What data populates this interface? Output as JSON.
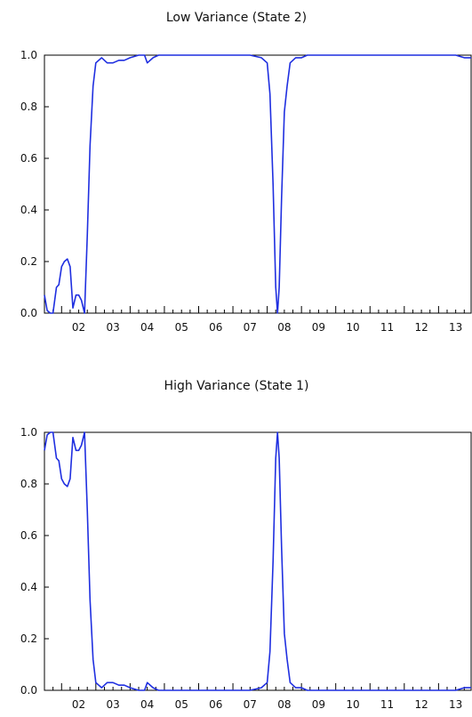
{
  "chart_data": [
    {
      "type": "line",
      "title": "Low Variance (State 2)",
      "xlabel": "",
      "ylabel": "",
      "ylim": [
        0.0,
        1.0
      ],
      "xlim": [
        2001.5,
        2013.95
      ],
      "grid": false,
      "x_tick_labels": [
        "02",
        "03",
        "04",
        "05",
        "06",
        "07",
        "08",
        "09",
        "10",
        "11",
        "12",
        "13"
      ],
      "x_tick_positions": [
        2002,
        2003,
        2004,
        2005,
        2006,
        2007,
        2008,
        2009,
        2010,
        2011,
        2012,
        2013
      ],
      "y_ticks": [
        0.0,
        0.2,
        0.4,
        0.6,
        0.8,
        1.0
      ],
      "y_tick_labels": [
        "0.0",
        "0.2",
        "0.4",
        "0.6",
        "0.8",
        "1.0"
      ],
      "series": [
        {
          "color": "#1f2fe0",
          "points": [
            [
              2001.5,
              0.07
            ],
            [
              2001.58,
              0.01
            ],
            [
              2001.67,
              0.0
            ],
            [
              2001.75,
              0.0
            ],
            [
              2001.85,
              0.1
            ],
            [
              2001.92,
              0.11
            ],
            [
              2002.0,
              0.18
            ],
            [
              2002.08,
              0.2
            ],
            [
              2002.17,
              0.21
            ],
            [
              2002.25,
              0.18
            ],
            [
              2002.33,
              0.02
            ],
            [
              2002.42,
              0.07
            ],
            [
              2002.5,
              0.07
            ],
            [
              2002.58,
              0.05
            ],
            [
              2002.67,
              0.0
            ],
            [
              2002.75,
              0.3
            ],
            [
              2002.83,
              0.65
            ],
            [
              2002.92,
              0.88
            ],
            [
              2003.0,
              0.97
            ],
            [
              2003.17,
              0.99
            ],
            [
              2003.33,
              0.97
            ],
            [
              2003.5,
              0.97
            ],
            [
              2003.67,
              0.98
            ],
            [
              2003.83,
              0.98
            ],
            [
              2004.0,
              0.99
            ],
            [
              2004.25,
              1.0
            ],
            [
              2004.42,
              1.0
            ],
            [
              2004.5,
              0.97
            ],
            [
              2004.67,
              0.99
            ],
            [
              2004.83,
              1.0
            ],
            [
              2005.0,
              1.0
            ],
            [
              2005.5,
              1.0
            ],
            [
              2006.0,
              1.0
            ],
            [
              2006.5,
              1.0
            ],
            [
              2007.0,
              1.0
            ],
            [
              2007.5,
              1.0
            ],
            [
              2007.83,
              0.99
            ],
            [
              2008.0,
              0.97
            ],
            [
              2008.08,
              0.85
            ],
            [
              2008.17,
              0.5
            ],
            [
              2008.25,
              0.1
            ],
            [
              2008.3,
              0.0
            ],
            [
              2008.35,
              0.1
            ],
            [
              2008.42,
              0.45
            ],
            [
              2008.5,
              0.78
            ],
            [
              2008.58,
              0.88
            ],
            [
              2008.67,
              0.97
            ],
            [
              2008.83,
              0.99
            ],
            [
              2009.0,
              0.99
            ],
            [
              2009.17,
              1.0
            ],
            [
              2009.5,
              1.0
            ],
            [
              2010.0,
              1.0
            ],
            [
              2011.0,
              1.0
            ],
            [
              2012.0,
              1.0
            ],
            [
              2013.0,
              1.0
            ],
            [
              2013.5,
              1.0
            ],
            [
              2013.75,
              0.99
            ],
            [
              2013.95,
              0.99
            ]
          ]
        }
      ]
    },
    {
      "type": "line",
      "title": "High Variance (State 1)",
      "xlabel": "",
      "ylabel": "",
      "ylim": [
        0.0,
        1.0
      ],
      "xlim": [
        2001.5,
        2013.95
      ],
      "grid": false,
      "x_tick_labels": [
        "02",
        "03",
        "04",
        "05",
        "06",
        "07",
        "08",
        "09",
        "10",
        "11",
        "12",
        "13"
      ],
      "x_tick_positions": [
        2002,
        2003,
        2004,
        2005,
        2006,
        2007,
        2008,
        2009,
        2010,
        2011,
        2012,
        2013
      ],
      "y_ticks": [
        0.0,
        0.2,
        0.4,
        0.6,
        0.8,
        1.0
      ],
      "y_tick_labels": [
        "0.0",
        "0.2",
        "0.4",
        "0.6",
        "0.8",
        "1.0"
      ],
      "series": [
        {
          "color": "#1f2fe0",
          "points": [
            [
              2001.5,
              0.93
            ],
            [
              2001.58,
              0.99
            ],
            [
              2001.67,
              1.0
            ],
            [
              2001.75,
              1.0
            ],
            [
              2001.85,
              0.9
            ],
            [
              2001.92,
              0.89
            ],
            [
              2002.0,
              0.82
            ],
            [
              2002.08,
              0.8
            ],
            [
              2002.17,
              0.79
            ],
            [
              2002.25,
              0.82
            ],
            [
              2002.33,
              0.98
            ],
            [
              2002.42,
              0.93
            ],
            [
              2002.5,
              0.93
            ],
            [
              2002.58,
              0.95
            ],
            [
              2002.67,
              1.0
            ],
            [
              2002.75,
              0.7
            ],
            [
              2002.83,
              0.35
            ],
            [
              2002.92,
              0.12
            ],
            [
              2003.0,
              0.03
            ],
            [
              2003.17,
              0.01
            ],
            [
              2003.33,
              0.03
            ],
            [
              2003.5,
              0.03
            ],
            [
              2003.67,
              0.02
            ],
            [
              2003.83,
              0.02
            ],
            [
              2004.0,
              0.01
            ],
            [
              2004.25,
              0.0
            ],
            [
              2004.42,
              0.0
            ],
            [
              2004.5,
              0.03
            ],
            [
              2004.67,
              0.01
            ],
            [
              2004.83,
              0.0
            ],
            [
              2005.0,
              0.0
            ],
            [
              2005.5,
              0.0
            ],
            [
              2006.0,
              0.0
            ],
            [
              2006.5,
              0.0
            ],
            [
              2007.0,
              0.0
            ],
            [
              2007.5,
              0.0
            ],
            [
              2007.83,
              0.01
            ],
            [
              2008.0,
              0.03
            ],
            [
              2008.08,
              0.15
            ],
            [
              2008.17,
              0.5
            ],
            [
              2008.25,
              0.9
            ],
            [
              2008.3,
              1.0
            ],
            [
              2008.35,
              0.9
            ],
            [
              2008.42,
              0.55
            ],
            [
              2008.5,
              0.22
            ],
            [
              2008.58,
              0.12
            ],
            [
              2008.67,
              0.03
            ],
            [
              2008.83,
              0.01
            ],
            [
              2009.0,
              0.01
            ],
            [
              2009.17,
              0.0
            ],
            [
              2009.5,
              0.0
            ],
            [
              2010.0,
              0.0
            ],
            [
              2011.0,
              0.0
            ],
            [
              2012.0,
              0.0
            ],
            [
              2013.0,
              0.0
            ],
            [
              2013.5,
              0.0
            ],
            [
              2013.75,
              0.01
            ],
            [
              2013.95,
              0.01
            ]
          ]
        }
      ]
    }
  ]
}
